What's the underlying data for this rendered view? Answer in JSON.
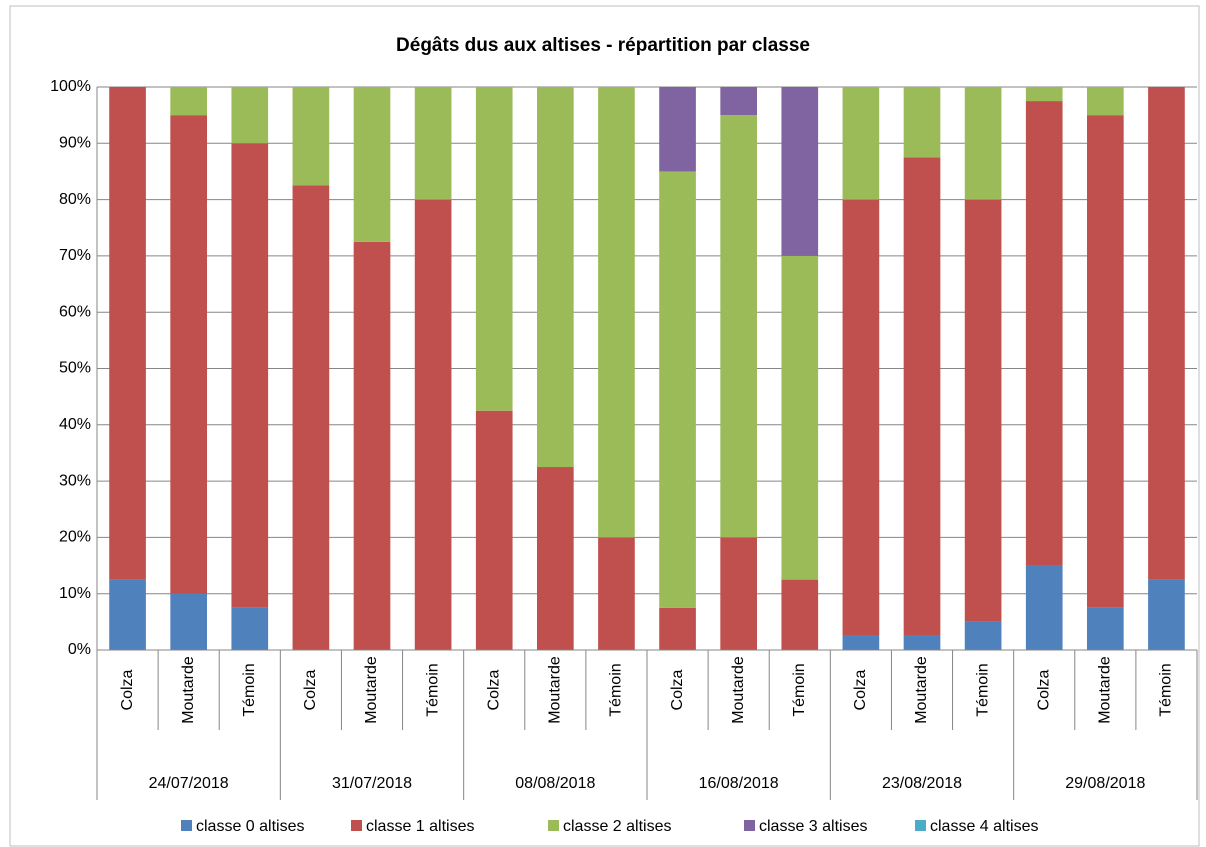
{
  "chart_data": {
    "type": "stacked_bar",
    "title": "Dégâts dus aux altises - répartition par classe",
    "categories": [
      "Colza",
      "Moutarde",
      "Témoin",
      "Colza",
      "Moutarde",
      "Témoin",
      "Colza",
      "Moutarde",
      "Témoin",
      "Colza",
      "Moutarde",
      "Témoin",
      "Colza",
      "Moutarde",
      "Témoin",
      "Colza",
      "Moutarde",
      "Témoin"
    ],
    "group_labels": [
      "24/07/2018",
      "31/07/2018",
      "08/08/2018",
      "16/08/2018",
      "23/08/2018",
      "29/08/2018"
    ],
    "series": [
      {
        "name": "classe 0 altises",
        "color": "#4f81bd",
        "values": [
          12.5,
          10,
          7.5,
          0,
          0,
          0,
          0,
          0,
          0,
          0,
          0,
          0,
          2.5,
          2.5,
          5,
          15,
          7.5,
          12.5
        ]
      },
      {
        "name": "classe 1 altises",
        "color": "#c0504d",
        "values": [
          87.5,
          85,
          82.5,
          82.5,
          72.5,
          80,
          42.5,
          32.5,
          20,
          7.5,
          20,
          12.5,
          77.5,
          85,
          75,
          82.5,
          87.5,
          87.5
        ]
      },
      {
        "name": "classe 2 altises",
        "color": "#9bbb59",
        "values": [
          0,
          5,
          10,
          17.5,
          27.5,
          20,
          57.5,
          67.5,
          80,
          77.5,
          75,
          57.5,
          20,
          12.5,
          20,
          2.5,
          5,
          0
        ]
      },
      {
        "name": "classe 3 altises",
        "color": "#8064a2",
        "values": [
          0,
          0,
          0,
          0,
          0,
          0,
          0,
          0,
          0,
          15,
          5,
          30,
          0,
          0,
          0,
          0,
          0,
          0
        ]
      },
      {
        "name": "classe 4 altises",
        "color": "#4bacc6",
        "values": [
          0,
          0,
          0,
          0,
          0,
          0,
          0,
          0,
          0,
          0,
          0,
          0,
          0,
          0,
          0,
          0,
          0,
          0
        ]
      }
    ],
    "ylim": [
      0,
      100
    ],
    "yticks": [
      {
        "value": 0,
        "label": "0%"
      },
      {
        "value": 10,
        "label": "10%"
      },
      {
        "value": 20,
        "label": "20%"
      },
      {
        "value": 30,
        "label": "30%"
      },
      {
        "value": 40,
        "label": "40%"
      },
      {
        "value": 50,
        "label": "50%"
      },
      {
        "value": 60,
        "label": "60%"
      },
      {
        "value": 70,
        "label": "70%"
      },
      {
        "value": 80,
        "label": "80%"
      },
      {
        "value": 90,
        "label": "90%"
      },
      {
        "value": 100,
        "label": "100%"
      }
    ],
    "grid": true,
    "legend": "bottom"
  }
}
